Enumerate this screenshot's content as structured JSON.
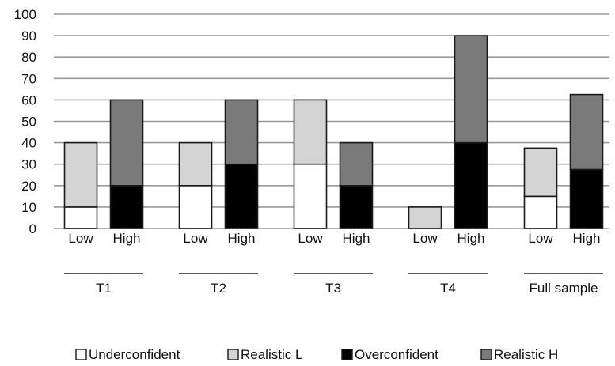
{
  "chart_data": {
    "type": "bar",
    "stacked": true,
    "title": "",
    "xlabel": "",
    "ylabel": "",
    "ylim": [
      0,
      100
    ],
    "yticks": [
      0,
      10,
      20,
      30,
      40,
      50,
      60,
      70,
      80,
      90,
      100
    ],
    "grid": true,
    "legend_position": "bottom",
    "groups": [
      {
        "name": "T1",
        "categories": [
          {
            "label": "Low",
            "values": {
              "Underconfident": 10,
              "Realistic L": 30,
              "Overconfident": 0,
              "Realistic H": 0
            }
          },
          {
            "label": "High",
            "values": {
              "Underconfident": 0,
              "Realistic L": 0,
              "Overconfident": 20,
              "Realistic H": 40
            }
          }
        ]
      },
      {
        "name": "T2",
        "categories": [
          {
            "label": "Low",
            "values": {
              "Underconfident": 20,
              "Realistic L": 20,
              "Overconfident": 0,
              "Realistic H": 0
            }
          },
          {
            "label": "High",
            "values": {
              "Underconfident": 0,
              "Realistic L": 0,
              "Overconfident": 30,
              "Realistic H": 30
            }
          }
        ]
      },
      {
        "name": "T3",
        "categories": [
          {
            "label": "Low",
            "values": {
              "Underconfident": 30,
              "Realistic L": 30,
              "Overconfident": 0,
              "Realistic H": 0
            }
          },
          {
            "label": "High",
            "values": {
              "Underconfident": 0,
              "Realistic L": 0,
              "Overconfident": 20,
              "Realistic H": 20
            }
          }
        ]
      },
      {
        "name": "T4",
        "categories": [
          {
            "label": "Low",
            "values": {
              "Underconfident": 0,
              "Realistic L": 10,
              "Overconfident": 0,
              "Realistic H": 0
            }
          },
          {
            "label": "High",
            "values": {
              "Underconfident": 0,
              "Realistic L": 0,
              "Overconfident": 40,
              "Realistic H": 50
            }
          }
        ]
      },
      {
        "name": "Full sample",
        "categories": [
          {
            "label": "Low",
            "values": {
              "Underconfident": 15,
              "Realistic L": 22.5,
              "Overconfident": 0,
              "Realistic H": 0
            }
          },
          {
            "label": "High",
            "values": {
              "Underconfident": 0,
              "Realistic L": 0,
              "Overconfident": 27.5,
              "Realistic H": 35
            }
          }
        ]
      }
    ],
    "series": [
      {
        "name": "Underconfident",
        "color": "#ffffff"
      },
      {
        "name": "Realistic L",
        "color": "#d4d4d4"
      },
      {
        "name": "Overconfident",
        "color": "#000000"
      },
      {
        "name": "Realistic H",
        "color": "#7a7a7a"
      }
    ]
  }
}
